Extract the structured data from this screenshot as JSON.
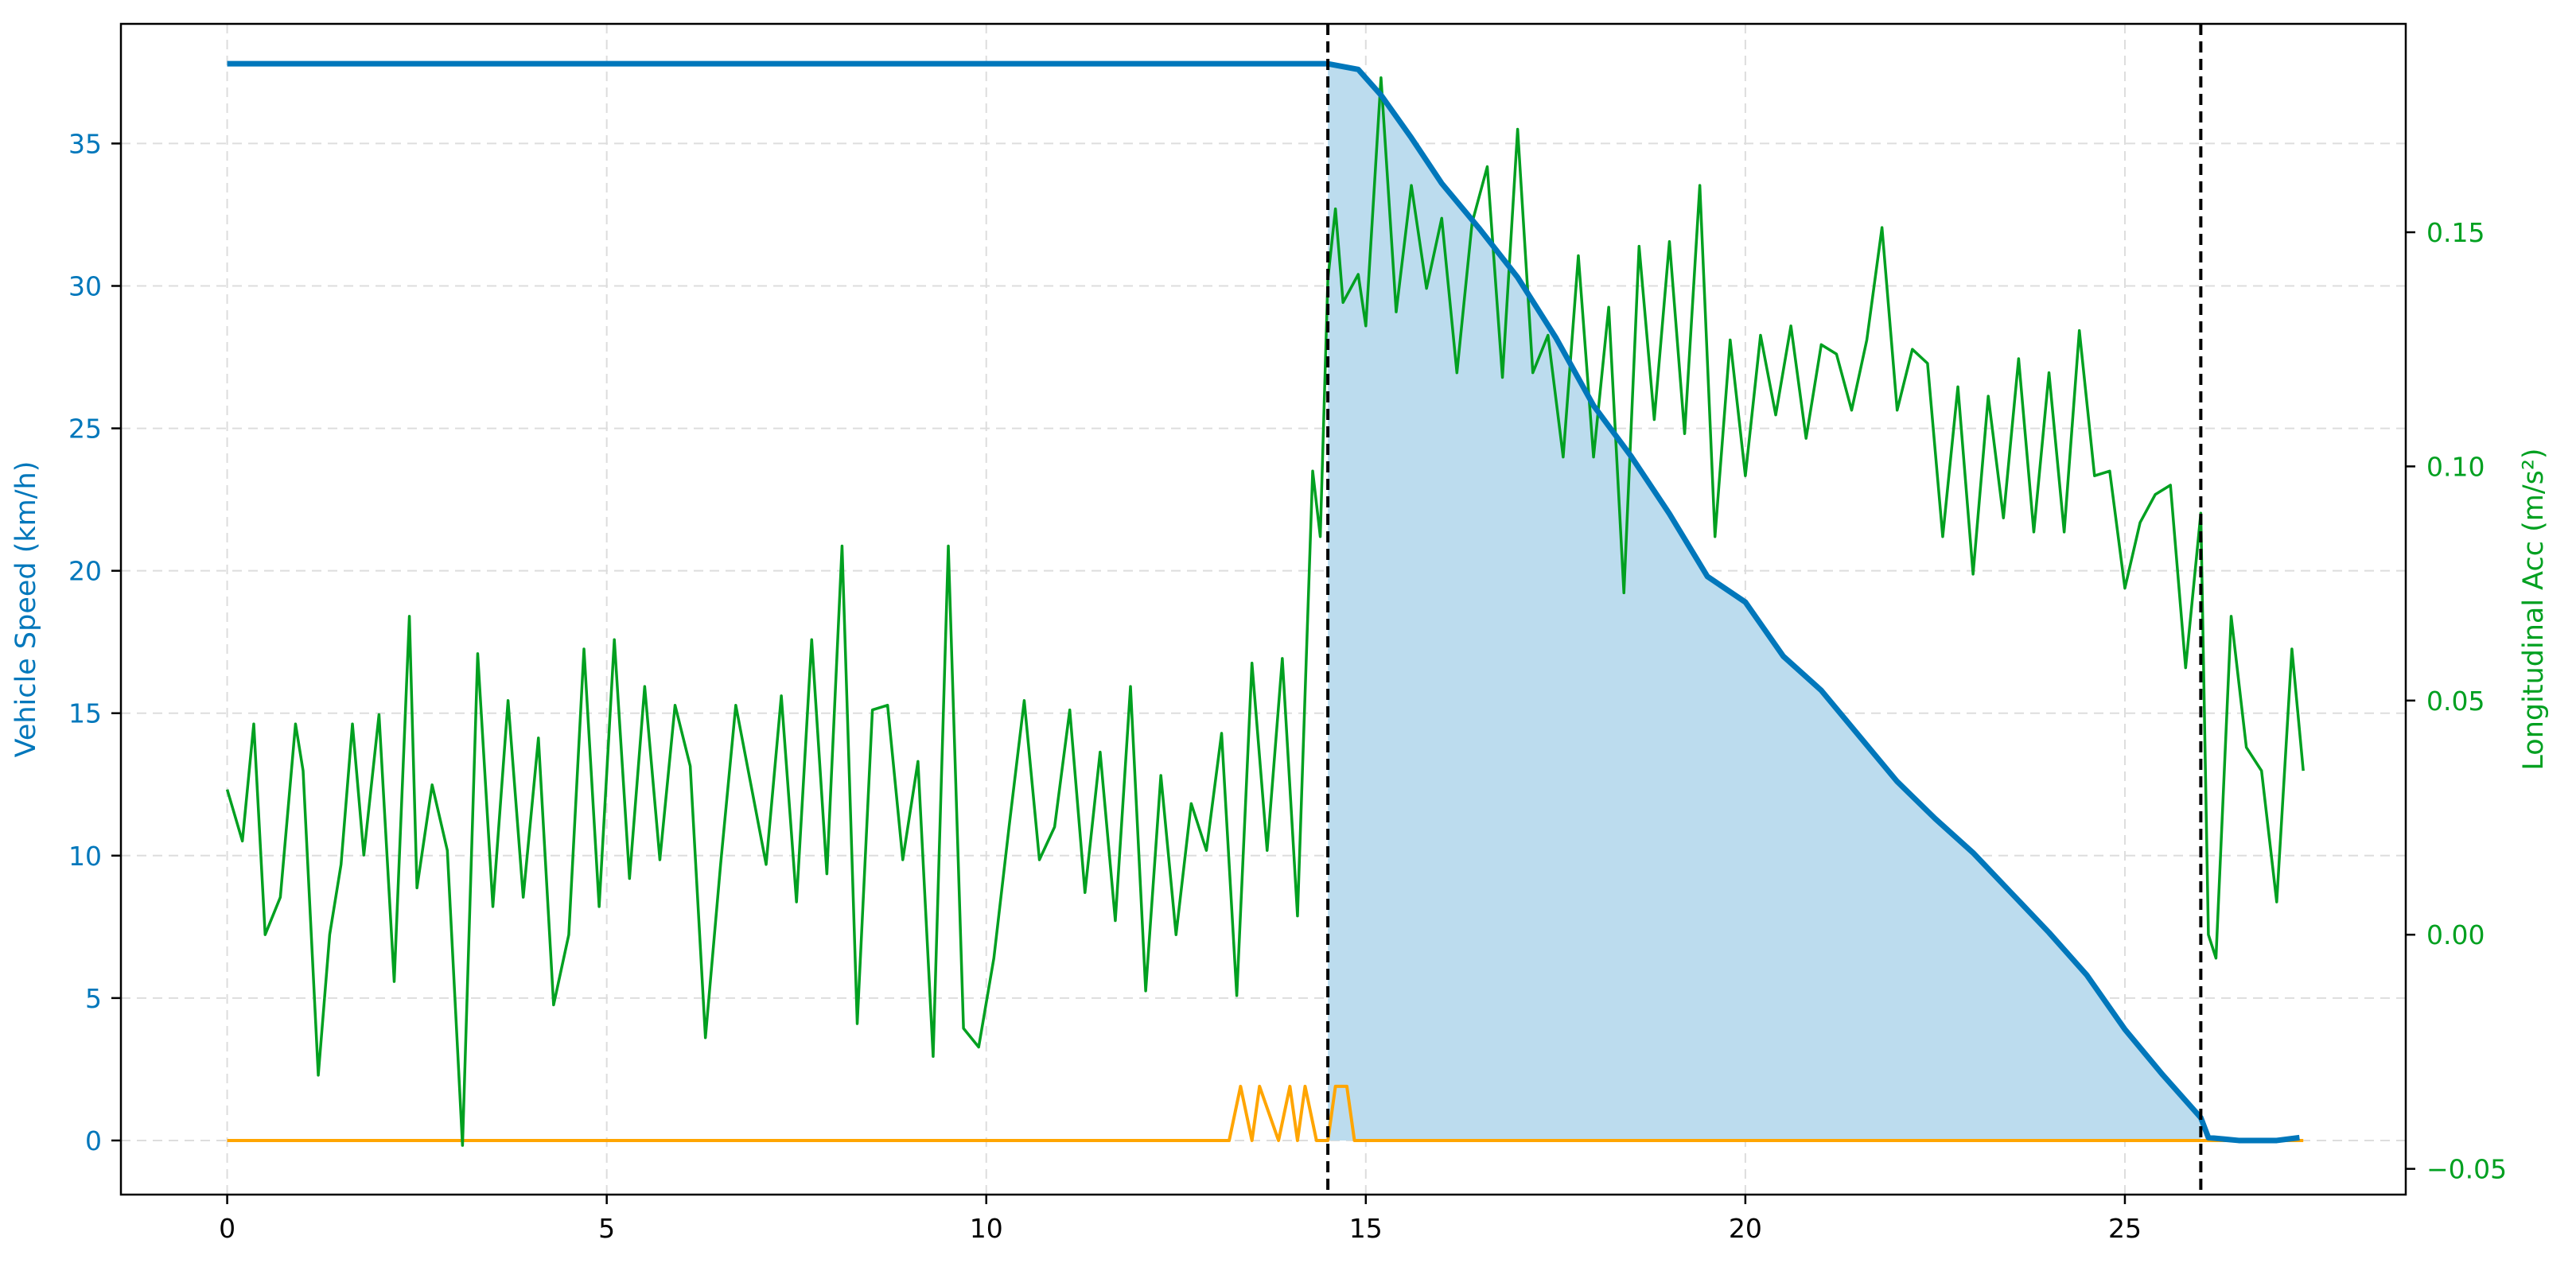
{
  "chart_data": {
    "type": "line",
    "title": "",
    "xlabel": "",
    "ylabel_left": "Vehicle Speed (km/h)",
    "ylabel_right": "Longitudinal Acc (m/s²)",
    "xlim": [
      -1.4,
      28.7
    ],
    "ylim_left": [
      -1.9,
      39.2
    ],
    "ylim_right": [
      -0.0555,
      0.1945
    ],
    "x_ticks": [
      0,
      5,
      10,
      15,
      20,
      25
    ],
    "y_left_ticks": [
      0,
      5,
      10,
      15,
      20,
      25,
      30,
      35
    ],
    "y_right_ticks": [
      -0.05,
      0.0,
      0.05,
      0.1,
      0.15
    ],
    "y_right_tick_labels": [
      "−0.05",
      "0.00",
      "0.05",
      "0.10",
      "0.15"
    ],
    "grid": true,
    "legend": "none",
    "colors": {
      "speed": "#0077bb",
      "acc": "#00a020",
      "flag": "#ffa500",
      "fill": "#bcdcee",
      "vline": "#000000",
      "left_axis": "#0077bb",
      "right_axis": "#00a020"
    },
    "vlines": [
      14.5,
      26.0
    ],
    "shaded_interval": [
      14.5,
      26.0
    ],
    "series": [
      {
        "key": "speed",
        "axis": "left",
        "x": [
          0,
          0.5,
          1,
          1.5,
          2,
          2.5,
          3,
          3.5,
          4,
          4.5,
          5,
          5.5,
          6,
          6.5,
          7,
          7.5,
          8,
          8.5,
          9,
          9.5,
          10,
          10.5,
          11,
          11.5,
          12,
          12.5,
          13,
          13.5,
          14,
          14.5,
          14.9,
          15.2,
          15.6,
          16.0,
          16.5,
          17.0,
          17.5,
          18.0,
          18.5,
          19.0,
          19.5,
          20.0,
          20.5,
          21.0,
          21.5,
          22.0,
          22.5,
          23.0,
          23.5,
          24.0,
          24.5,
          25.0,
          25.5,
          26.0,
          26.1,
          26.5,
          27.0,
          27.3
        ],
        "values": [
          37.8,
          37.8,
          37.8,
          37.8,
          37.8,
          37.8,
          37.8,
          37.8,
          37.8,
          37.8,
          37.8,
          37.8,
          37.8,
          37.8,
          37.8,
          37.8,
          37.8,
          37.8,
          37.8,
          37.8,
          37.8,
          37.8,
          37.8,
          37.8,
          37.8,
          37.8,
          37.8,
          37.8,
          37.8,
          37.8,
          37.6,
          36.7,
          35.2,
          33.6,
          32.0,
          30.3,
          28.2,
          25.8,
          24.0,
          22.0,
          19.8,
          18.9,
          17.0,
          15.8,
          14.2,
          12.6,
          11.3,
          10.1,
          8.7,
          7.3,
          5.8,
          3.9,
          2.3,
          0.8,
          0.1,
          0.0,
          0.0,
          0.1
        ]
      },
      {
        "key": "acc",
        "axis": "right",
        "x": [
          0,
          0.2,
          0.35,
          0.5,
          0.7,
          0.9,
          1.0,
          1.2,
          1.35,
          1.5,
          1.65,
          1.8,
          2.0,
          2.2,
          2.4,
          2.5,
          2.7,
          2.9,
          3.1,
          3.3,
          3.5,
          3.7,
          3.9,
          4.1,
          4.3,
          4.5,
          4.7,
          4.9,
          5.1,
          5.3,
          5.5,
          5.7,
          5.9,
          6.1,
          6.3,
          6.5,
          6.7,
          6.9,
          7.1,
          7.3,
          7.5,
          7.7,
          7.9,
          8.1,
          8.3,
          8.5,
          8.7,
          8.9,
          9.1,
          9.3,
          9.5,
          9.7,
          9.9,
          10.1,
          10.3,
          10.5,
          10.7,
          10.9,
          11.1,
          11.3,
          11.5,
          11.7,
          11.9,
          12.1,
          12.3,
          12.5,
          12.7,
          12.9,
          13.1,
          13.3,
          13.5,
          13.7,
          13.9,
          14.1,
          14.3,
          14.4,
          14.5,
          14.6,
          14.7,
          14.9,
          15.0,
          15.2,
          15.4,
          15.6,
          15.8,
          16.0,
          16.2,
          16.4,
          16.6,
          16.8,
          17.0,
          17.2,
          17.4,
          17.6,
          17.8,
          18.0,
          18.2,
          18.4,
          18.6,
          18.8,
          19.0,
          19.2,
          19.4,
          19.6,
          19.8,
          20.0,
          20.2,
          20.4,
          20.6,
          20.8,
          21.0,
          21.2,
          21.4,
          21.6,
          21.8,
          22.0,
          22.2,
          22.4,
          22.6,
          22.8,
          23.0,
          23.2,
          23.4,
          23.6,
          23.8,
          24.0,
          24.2,
          24.4,
          24.6,
          24.8,
          25.0,
          25.2,
          25.4,
          25.6,
          25.8,
          26.0,
          26.1,
          26.2,
          26.4,
          26.6,
          26.8,
          27.0,
          27.2,
          27.35
        ],
        "values": [
          0.031,
          0.02,
          0.045,
          0.0,
          0.008,
          0.045,
          0.035,
          -0.03,
          0.0,
          0.015,
          0.045,
          0.017,
          0.047,
          -0.01,
          0.068,
          0.01,
          0.032,
          0.018,
          -0.045,
          0.06,
          0.006,
          0.05,
          0.008,
          0.042,
          -0.015,
          0.0,
          0.061,
          0.006,
          0.063,
          0.012,
          0.053,
          0.016,
          0.049,
          0.036,
          -0.022,
          0.015,
          0.049,
          0.032,
          0.015,
          0.051,
          0.007,
          0.063,
          0.013,
          0.083,
          -0.019,
          0.048,
          0.049,
          0.016,
          0.037,
          -0.026,
          0.083,
          -0.02,
          -0.024,
          -0.005,
          0.023,
          0.05,
          0.016,
          0.023,
          0.048,
          0.009,
          0.039,
          0.003,
          0.053,
          -0.012,
          0.034,
          0.0,
          0.028,
          0.018,
          0.043,
          -0.013,
          0.058,
          0.018,
          0.059,
          0.004,
          0.099,
          0.085,
          0.14,
          0.155,
          0.135,
          0.141,
          0.13,
          0.183,
          0.133,
          0.16,
          0.138,
          0.153,
          0.12,
          0.152,
          0.164,
          0.119,
          0.172,
          0.12,
          0.128,
          0.102,
          0.145,
          0.102,
          0.134,
          0.073,
          0.147,
          0.11,
          0.148,
          0.107,
          0.16,
          0.085,
          0.127,
          0.098,
          0.128,
          0.111,
          0.13,
          0.106,
          0.126,
          0.124,
          0.112,
          0.127,
          0.151,
          0.112,
          0.125,
          0.122,
          0.085,
          0.117,
          0.077,
          0.115,
          0.089,
          0.123,
          0.086,
          0.12,
          0.086,
          0.129,
          0.098,
          0.099,
          0.074,
          0.088,
          0.094,
          0.096,
          0.057,
          0.09,
          0.0,
          -0.005,
          0.068,
          0.04,
          0.035,
          0.007,
          0.061,
          0.035
        ],
        "name": ""
      },
      {
        "key": "flag",
        "axis": "left",
        "x": [
          0,
          13.2,
          13.35,
          13.5,
          13.6,
          13.85,
          14.0,
          14.1,
          14.2,
          14.35,
          14.5,
          14.6,
          14.75,
          14.85,
          27.35
        ],
        "values": [
          0,
          0,
          1.9,
          0,
          1.9,
          0,
          1.9,
          0,
          1.9,
          0,
          0,
          1.9,
          1.9,
          0,
          0
        ]
      }
    ]
  }
}
